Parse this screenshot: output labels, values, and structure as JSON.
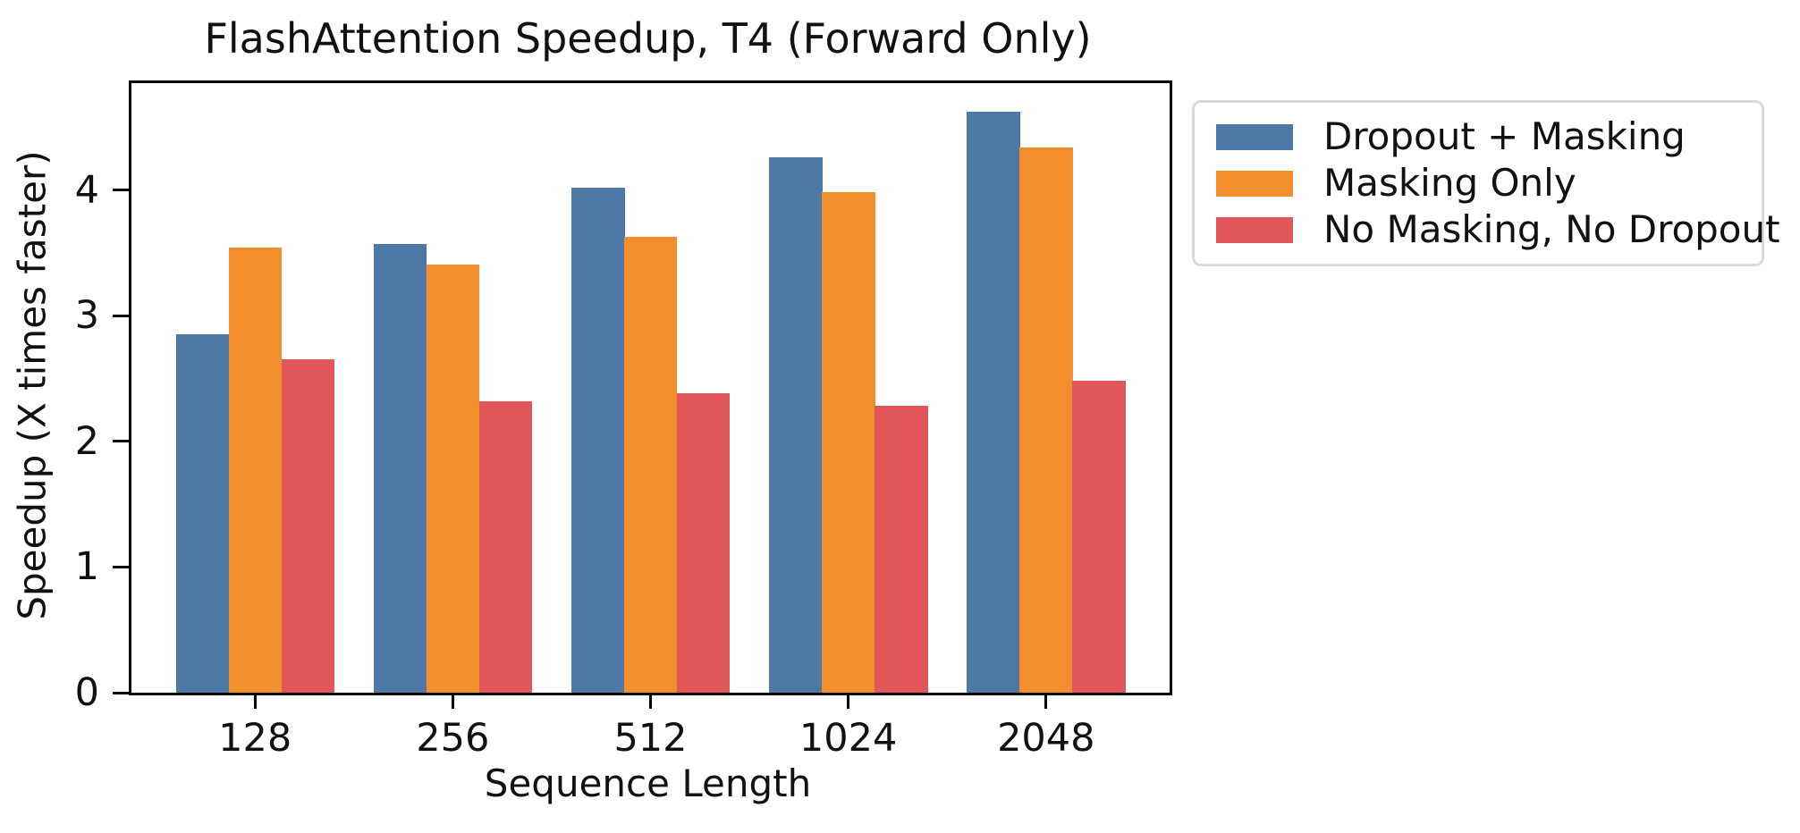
{
  "figure": {
    "background": "#ffffff",
    "axis_color": "#000000",
    "legend_border_color": "#d9d9d9"
  },
  "chart_data": {
    "type": "bar",
    "title": "FlashAttention Speedup, T4 (Forward Only)",
    "xlabel": "Sequence Length",
    "ylabel": "Speedup (X times faster)",
    "categories": [
      "128",
      "256",
      "512",
      "1024",
      "2048"
    ],
    "series": [
      {
        "name": "Dropout + Masking",
        "color": "#4E79A7",
        "values": [
          2.85,
          3.57,
          4.02,
          4.26,
          4.62
        ]
      },
      {
        "name": "Masking Only",
        "color": "#F28E2B",
        "values": [
          3.54,
          3.41,
          3.63,
          3.98,
          4.34
        ]
      },
      {
        "name": "No Masking, No Dropout",
        "color": "#E15759",
        "values": [
          2.65,
          2.32,
          2.38,
          2.28,
          2.48
        ]
      }
    ],
    "ylim": [
      0,
      4.85
    ],
    "yticks": [
      0,
      1,
      2,
      3,
      4
    ],
    "grid": false,
    "legend_position": "outside-right",
    "bar_group_width": 0.8
  }
}
